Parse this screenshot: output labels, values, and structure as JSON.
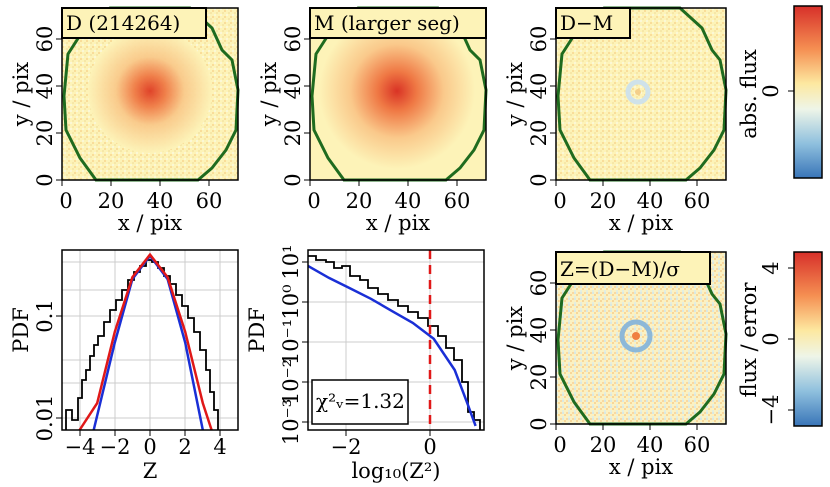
{
  "panels": {
    "p1": {
      "annotation": "D (214264)",
      "xlabel": "x / pix",
      "ylabel": "y / pix",
      "xticks": [
        "0",
        "20",
        "40",
        "60"
      ],
      "yticks": [
        "0",
        "20",
        "40",
        "60"
      ]
    },
    "p2": {
      "annotation": "M (larger seg)",
      "xlabel": "x / pix",
      "ylabel": "y / pix",
      "xticks": [
        "0",
        "20",
        "40",
        "60"
      ],
      "yticks": [
        "0",
        "20",
        "40",
        "60"
      ]
    },
    "p3": {
      "annotation": "D−M",
      "xlabel": "x / pix",
      "ylabel": "y / pix",
      "xticks": [
        "0",
        "20",
        "40",
        "60"
      ],
      "yticks": [
        "0",
        "20",
        "40",
        "60"
      ]
    },
    "p4": {
      "xlabel": "Z",
      "ylabel": "PDF",
      "xticks": [
        "−4",
        "−2",
        "0",
        "2",
        "4"
      ],
      "yticks": [
        "0.01",
        "0.1"
      ]
    },
    "p5": {
      "xlabel": "log₁₀(Z²)",
      "ylabel": "PDF",
      "xticks": [
        "−2",
        "0"
      ],
      "yticks": [
        "10⁻³",
        "10⁻²",
        "10⁻¹",
        "10⁰",
        "10¹"
      ],
      "annotation": "χ²ᵥ=1.32"
    },
    "p6": {
      "annotation": "Z=(D−M)/σ",
      "xlabel": "x / pix",
      "ylabel": "y / pix",
      "xticks": [
        "0",
        "20",
        "40",
        "60"
      ],
      "yticks": [
        "0",
        "20",
        "40",
        "60"
      ]
    }
  },
  "colorbars": {
    "top": {
      "label": "abs. flux",
      "ticks": [
        "0"
      ]
    },
    "bottom": {
      "label": "flux / error",
      "ticks": [
        "4",
        "0",
        "−4"
      ]
    }
  },
  "colors": {
    "contour": "#1f6b1f",
    "gauss_fit": "#1a2fd6",
    "normal": "#e01818",
    "threshold": "#e01818",
    "hist": "#000000",
    "background": "#fdf3b8"
  },
  "chart_data": [
    {
      "type": "heatmap",
      "title": "D (214264)",
      "xlabel": "x / pix",
      "ylabel": "y / pix",
      "xlim": [
        0,
        72
      ],
      "ylim": [
        0,
        72
      ],
      "center": [
        36,
        37
      ]
    },
    {
      "type": "heatmap",
      "title": "M (larger seg)",
      "xlabel": "x / pix",
      "ylabel": "y / pix",
      "xlim": [
        0,
        72
      ],
      "ylim": [
        0,
        72
      ],
      "center": [
        36,
        37
      ]
    },
    {
      "type": "heatmap",
      "title": "D−M",
      "xlabel": "x / pix",
      "ylabel": "y / pix",
      "xlim": [
        0,
        72
      ],
      "ylim": [
        0,
        72
      ]
    },
    {
      "type": "line",
      "xlabel": "Z",
      "ylabel": "PDF",
      "xlim": [
        -5,
        5
      ],
      "ylim": [
        0.005,
        0.8
      ],
      "log_y": true,
      "series": [
        {
          "x": [
            -4,
            -3,
            -2,
            -1,
            0,
            1,
            2,
            3,
            3.5
          ],
          "values": [
            0.002,
            0.014,
            0.07,
            0.24,
            0.4,
            0.24,
            0.07,
            0.014,
            0.004
          ]
        },
        {
          "x": [
            -3.2,
            -2,
            -1,
            0,
            1,
            2,
            3
          ],
          "values": [
            0.004,
            0.055,
            0.23,
            0.39,
            0.23,
            0.055,
            0.004
          ]
        }
      ]
    },
    {
      "type": "line",
      "xlabel": "log₁₀(Z²)",
      "ylabel": "PDF",
      "xlim": [
        -3,
        1.2
      ],
      "ylim": [
        0.001,
        10
      ],
      "log_y": true,
      "threshold_x": 0,
      "series": [
        {
          "x": [
            -3,
            -2.5,
            -2,
            -1.5,
            -1,
            -0.5,
            0,
            0.5,
            0.8,
            1.0
          ],
          "values": [
            8,
            4,
            2.2,
            1.2,
            0.6,
            0.3,
            0.12,
            0.02,
            0.003,
            0.0008
          ]
        }
      ]
    },
    {
      "type": "heatmap",
      "title": "Z=(D−M)/σ",
      "xlabel": "x / pix",
      "ylabel": "y / pix",
      "xlim": [
        0,
        72
      ],
      "ylim": [
        0,
        72
      ]
    }
  ]
}
